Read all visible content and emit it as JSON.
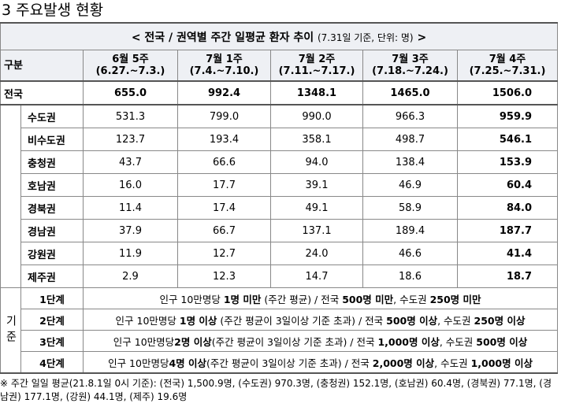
{
  "heading": "3 주요발생 현황",
  "table": {
    "title": "< 전국 / 권역별 주간 일평균 환자 추이",
    "title_note": "(7.31일 기준, 단위: 명)",
    "title_end": ">",
    "corner": "구분",
    "columns": [
      {
        "week": "6월 5주",
        "period": "(6.27.~7.3.)"
      },
      {
        "week": "7월 1주",
        "period": "(7.4.~7.10.)"
      },
      {
        "week": "7월 2주",
        "period": "(7.11.~7.17.)"
      },
      {
        "week": "7월 3주",
        "period": "(7.18.~7.24.)"
      },
      {
        "week": "7월 4주",
        "period": "(7.25.~7.31.)"
      }
    ],
    "rows": [
      {
        "label": "전국",
        "values": [
          "655.0",
          "992.4",
          "1348.1",
          "1465.0",
          "1506.0"
        ]
      },
      {
        "label": "수도권",
        "values": [
          "531.3",
          "799.0",
          "990.0",
          "966.3",
          "959.9"
        ]
      },
      {
        "label": "비수도권",
        "values": [
          "123.7",
          "193.4",
          "358.1",
          "498.7",
          "546.1"
        ]
      },
      {
        "label": "충청권",
        "values": [
          "43.7",
          "66.6",
          "94.0",
          "138.4",
          "153.9"
        ]
      },
      {
        "label": "호남권",
        "values": [
          "16.0",
          "17.7",
          "39.1",
          "46.9",
          "60.4"
        ]
      },
      {
        "label": "경북권",
        "values": [
          "11.4",
          "17.4",
          "49.1",
          "58.9",
          "84.0"
        ]
      },
      {
        "label": "경남권",
        "values": [
          "37.9",
          "66.7",
          "137.1",
          "189.4",
          "187.7"
        ]
      },
      {
        "label": "강원권",
        "values": [
          "11.9",
          "12.7",
          "24.0",
          "46.6",
          "41.4"
        ]
      },
      {
        "label": "제주권",
        "values": [
          "2.9",
          "12.3",
          "14.7",
          "18.6",
          "18.7"
        ]
      }
    ],
    "criteria": {
      "label": "기준",
      "rows": [
        {
          "stage": "1단계",
          "text": [
            "인구 10만명당 ",
            "1명 미만",
            " (주간 평균) / 전국 ",
            "500명 미만",
            ", 수도권 ",
            "250명 미만"
          ]
        },
        {
          "stage": "2단계",
          "text": [
            "인구 10만명당 ",
            "1명 이상",
            " (주간 평균이 3일이상 기준 초과) / 전국 ",
            "500명 이상",
            ", 수도권 ",
            "250명 이상"
          ]
        },
        {
          "stage": "3단계",
          "text": [
            "인구 10만명당",
            "2명 이상",
            "(주간 평균이 3일이상 기준 초과) / 전국 ",
            "1,000명 이상",
            ", 수도권 ",
            "500명 이상"
          ]
        },
        {
          "stage": "4단계",
          "text": [
            "인구 10만명당",
            "4명 이상",
            "(주간 평균이 3일이상 기준 초과) / 전국 ",
            "2,000명 이상",
            ", 수도권 ",
            "1,000명 이상"
          ]
        }
      ]
    }
  },
  "footnote": "※ 주간 일일 평균(21.8.1일 0시 기준): (전국) 1,500.9명, (수도권) 970.3명, (충청권) 152.1명, (호남권) 60.4명, (경북권) 77.1명, (경남권) 177.1명, (강원) 44.1명, (제주) 19.6명"
}
